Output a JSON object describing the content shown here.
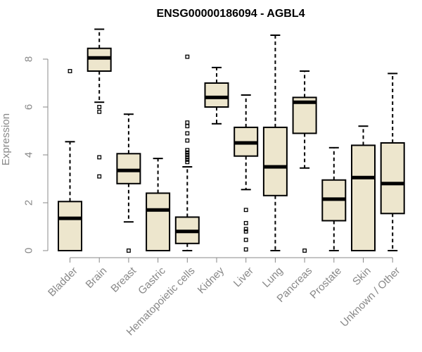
{
  "chart_data": {
    "type": "boxplot",
    "title": "ENSG00000186094 - AGBL4",
    "xlabel": "",
    "ylabel": "Expression",
    "ylim": [
      0,
      9.3
    ],
    "yticks": [
      0,
      2,
      4,
      6,
      8
    ],
    "box_fill": "#ede6cd",
    "categories": [
      "Bladder",
      "Brain",
      "Breast",
      "Gastric",
      "Hematopoietic cells",
      "Kidney",
      "Liver",
      "Lung",
      "Pancreas",
      "Prostate",
      "Skin",
      "Unknown / Other"
    ],
    "boxes": [
      {
        "category": "Bladder",
        "whisker_low": 0,
        "q1": 0,
        "median": 1.35,
        "q3": 2.05,
        "whisker_high": 4.55,
        "outliers": [
          7.5
        ]
      },
      {
        "category": "Brain",
        "whisker_low": 6.2,
        "q1": 7.5,
        "median": 8.05,
        "q3": 8.45,
        "whisker_high": 9.25,
        "outliers": [
          6.0,
          5.8,
          3.9,
          3.1
        ]
      },
      {
        "category": "Breast",
        "whisker_low": 1.2,
        "q1": 2.8,
        "median": 3.35,
        "q3": 4.05,
        "whisker_high": 5.7,
        "outliers": [
          0
        ]
      },
      {
        "category": "Gastric",
        "whisker_low": 0,
        "q1": 0,
        "median": 1.7,
        "q3": 2.4,
        "whisker_high": 3.85,
        "outliers": []
      },
      {
        "category": "Hematopoietic cells",
        "whisker_low": 0,
        "q1": 0.3,
        "median": 0.8,
        "q3": 1.4,
        "whisker_high": 3.5,
        "outliers": [
          3.7,
          3.8,
          3.9,
          4.0,
          4.1,
          4.2,
          4.6,
          4.9,
          5.2,
          5.35,
          8.1
        ]
      },
      {
        "category": "Kidney",
        "whisker_low": 5.3,
        "q1": 6.0,
        "median": 6.4,
        "q3": 7.0,
        "whisker_high": 7.65,
        "outliers": []
      },
      {
        "category": "Liver",
        "whisker_low": 2.55,
        "q1": 3.95,
        "median": 4.5,
        "q3": 5.15,
        "whisker_high": 6.5,
        "outliers": [
          1.7,
          1.15,
          0.9,
          0.8,
          0.45,
          0.05
        ]
      },
      {
        "category": "Lung",
        "whisker_low": 0,
        "q1": 2.3,
        "median": 3.5,
        "q3": 5.15,
        "whisker_high": 9.0,
        "outliers": []
      },
      {
        "category": "Pancreas",
        "whisker_low": 3.45,
        "q1": 4.9,
        "median": 6.2,
        "q3": 6.4,
        "whisker_high": 7.5,
        "outliers": [
          0
        ]
      },
      {
        "category": "Prostate",
        "whisker_low": 0,
        "q1": 1.25,
        "median": 2.15,
        "q3": 2.95,
        "whisker_high": 4.3,
        "outliers": []
      },
      {
        "category": "Skin",
        "whisker_low": 0,
        "q1": 0,
        "median": 3.05,
        "q3": 4.4,
        "whisker_high": 5.2,
        "outliers": []
      },
      {
        "category": "Unknown / Other",
        "whisker_low": 0,
        "q1": 1.55,
        "median": 2.8,
        "q3": 4.5,
        "whisker_high": 7.4,
        "outliers": []
      }
    ]
  }
}
